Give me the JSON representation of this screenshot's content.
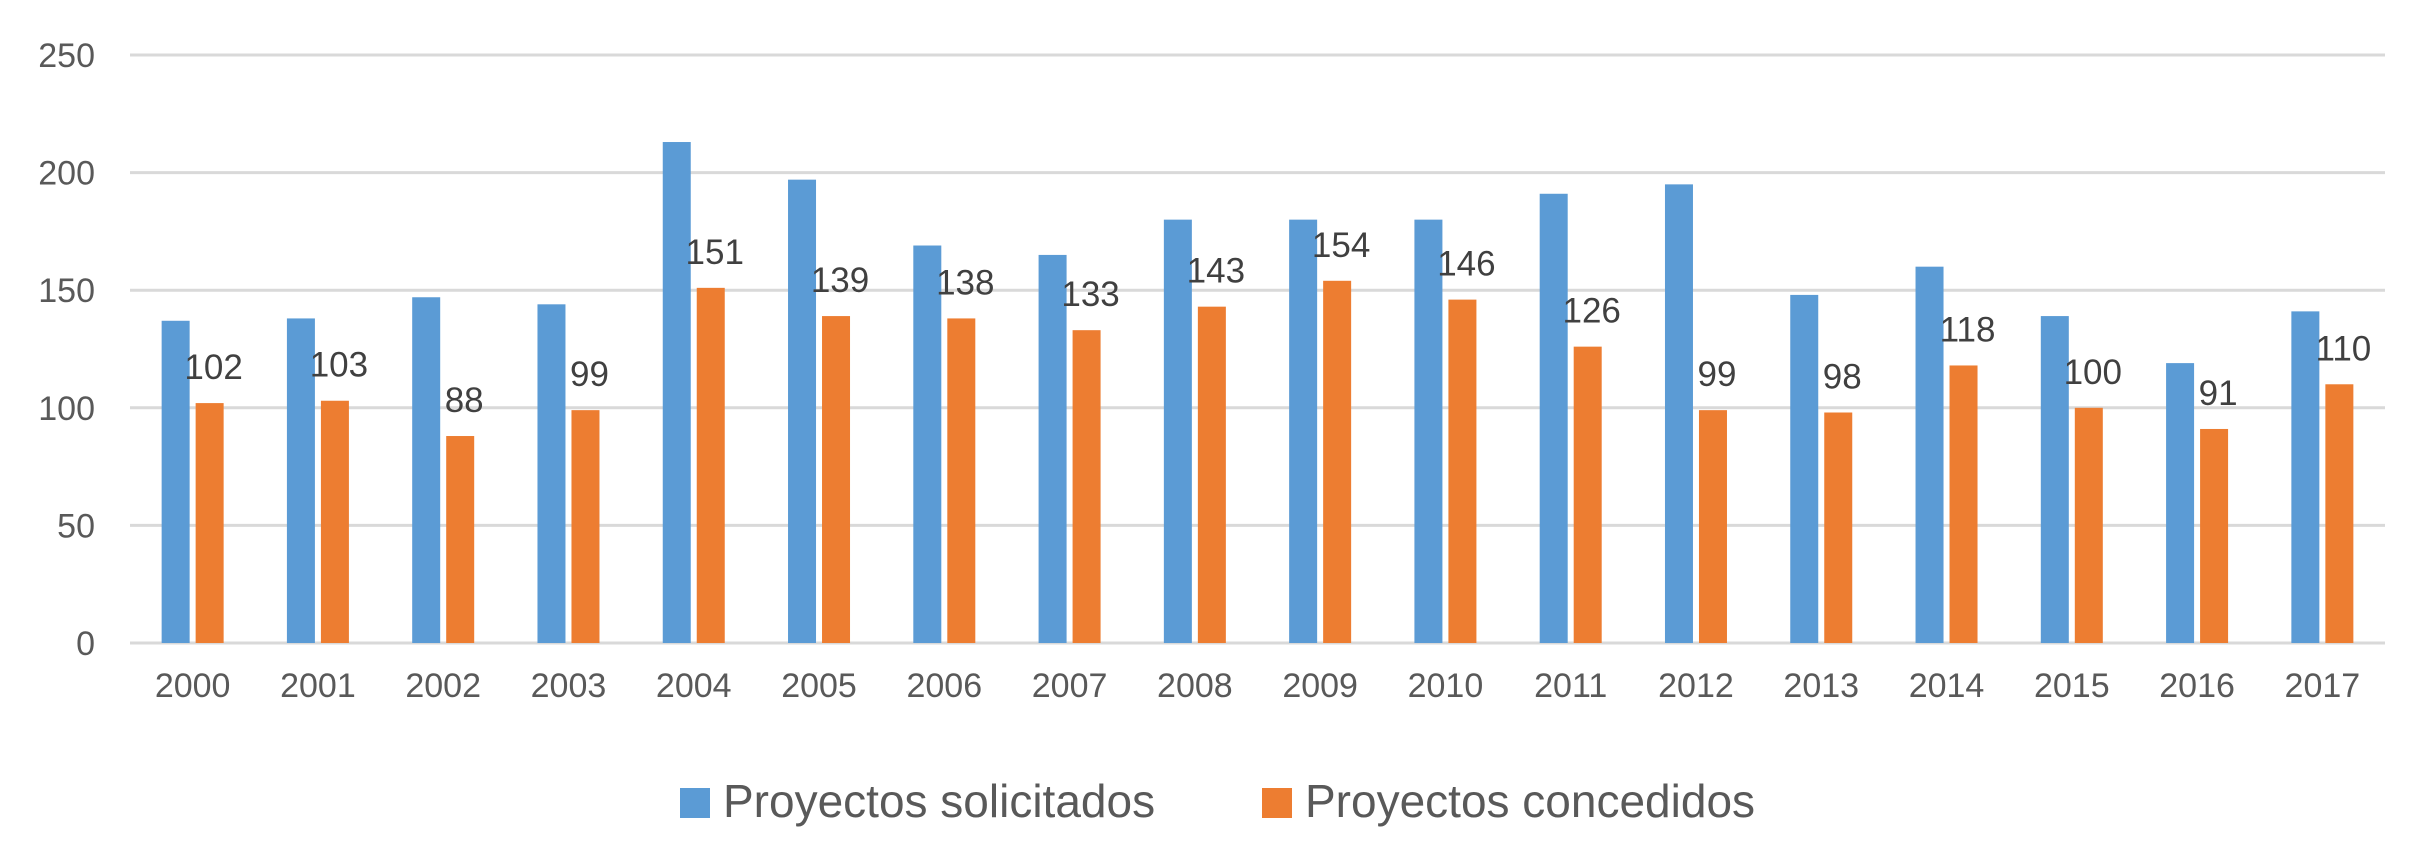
{
  "chart_data": {
    "type": "bar",
    "title": "",
    "xlabel": "",
    "ylabel": "",
    "ylim": [
      0,
      250
    ],
    "yticks": [
      0,
      50,
      100,
      150,
      200,
      250
    ],
    "grid": true,
    "legend_position": "bottom",
    "categories": [
      "2000",
      "2001",
      "2002",
      "2003",
      "2004",
      "2005",
      "2006",
      "2007",
      "2008",
      "2009",
      "2010",
      "2011",
      "2012",
      "2013",
      "2014",
      "2015",
      "2016",
      "2017"
    ],
    "series": [
      {
        "name": "Proyectos solicitados",
        "color": "#5b9bd5",
        "values": [
          137,
          138,
          147,
          144,
          213,
          197,
          169,
          165,
          180,
          180,
          180,
          191,
          195,
          148,
          160,
          139,
          119,
          141
        ],
        "show_data_labels": false
      },
      {
        "name": "Proyectos concedidos",
        "color": "#ed7d31",
        "values": [
          102,
          103,
          88,
          99,
          151,
          139,
          138,
          133,
          143,
          154,
          146,
          126,
          99,
          98,
          118,
          100,
          91,
          110
        ],
        "show_data_labels": true
      }
    ]
  }
}
